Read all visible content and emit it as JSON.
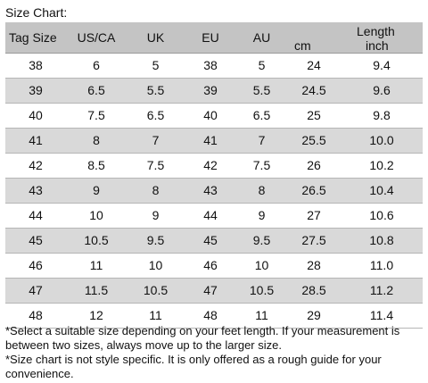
{
  "title": "Size Chart:",
  "headers": {
    "tag_size": "Tag Size",
    "us_ca": "US/CA",
    "uk": "UK",
    "eu": "EU",
    "au": "AU",
    "length": "Length",
    "cm": "cm",
    "inch": "inch"
  },
  "rows": [
    {
      "tag": "38",
      "us": "6",
      "uk": "5",
      "eu": "38",
      "au": "5",
      "cm": "24",
      "inch": "9.4"
    },
    {
      "tag": "39",
      "us": "6.5",
      "uk": "5.5",
      "eu": "39",
      "au": "5.5",
      "cm": "24.5",
      "inch": "9.6"
    },
    {
      "tag": "40",
      "us": "7.5",
      "uk": "6.5",
      "eu": "40",
      "au": "6.5",
      "cm": "25",
      "inch": "9.8"
    },
    {
      "tag": "41",
      "us": "8",
      "uk": "7",
      "eu": "41",
      "au": "7",
      "cm": "25.5",
      "inch": "10.0"
    },
    {
      "tag": "42",
      "us": "8.5",
      "uk": "7.5",
      "eu": "42",
      "au": "7.5",
      "cm": "26",
      "inch": "10.2"
    },
    {
      "tag": "43",
      "us": "9",
      "uk": "8",
      "eu": "43",
      "au": "8",
      "cm": "26.5",
      "inch": "10.4"
    },
    {
      "tag": "44",
      "us": "10",
      "uk": "9",
      "eu": "44",
      "au": "9",
      "cm": "27",
      "inch": "10.6"
    },
    {
      "tag": "45",
      "us": "10.5",
      "uk": "9.5",
      "eu": "45",
      "au": "9.5",
      "cm": "27.5",
      "inch": "10.8"
    },
    {
      "tag": "46",
      "us": "11",
      "uk": "10",
      "eu": "46",
      "au": "10",
      "cm": "28",
      "inch": "11.0"
    },
    {
      "tag": "47",
      "us": "11.5",
      "uk": "10.5",
      "eu": "47",
      "au": "10.5",
      "cm": "28.5",
      "inch": "11.2"
    },
    {
      "tag": "48",
      "us": "12",
      "uk": "11",
      "eu": "48",
      "au": "11",
      "cm": "29",
      "inch": "11.4"
    }
  ],
  "notes": [
    "*Select a suitable size depending on your feet length. If your measurement is between two sizes, always move up to the larger size.",
    "*Size chart is not style specific. It is only offered as a rough guide for your convenience."
  ],
  "colors": {
    "header_bg": "#c4c4c4",
    "shaded_row_bg": "#d9d9d9",
    "plain_row_bg": "#ffffff"
  }
}
